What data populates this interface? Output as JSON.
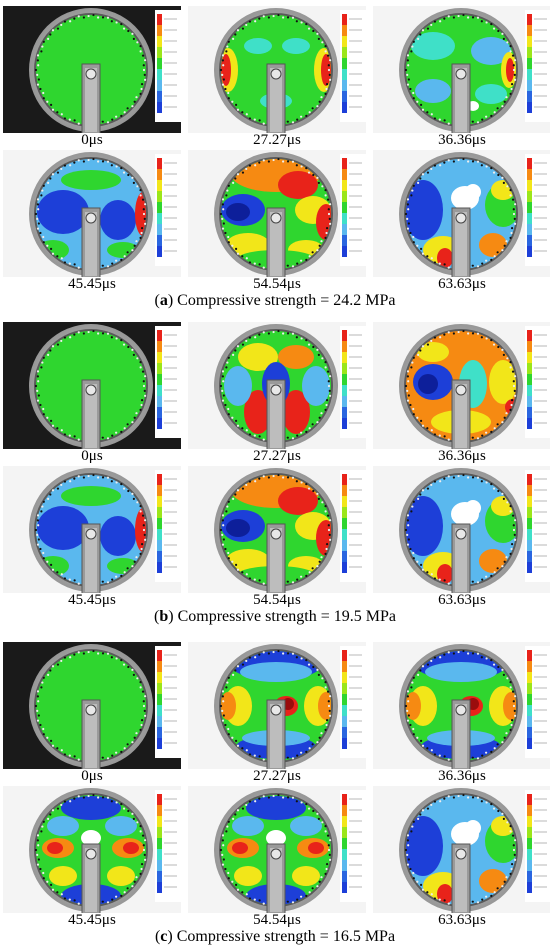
{
  "panels": [
    {
      "letter": "a",
      "caption_text": "Compressive strength = 24.2 MPa",
      "frames": [
        {
          "time": "0μs",
          "style": "uniform"
        },
        {
          "time": "27.27μs",
          "style": "sides-warm"
        },
        {
          "time": "36.36μs",
          "style": "mixed-cool"
        },
        {
          "time": "45.45μs",
          "style": "cool-center"
        },
        {
          "time": "54.54μs",
          "style": "hot-band"
        },
        {
          "time": "63.63μs",
          "style": "fracture"
        }
      ]
    },
    {
      "letter": "b",
      "caption_text": "Compressive strength = 19.5 MPa",
      "frames": [
        {
          "time": "0μs",
          "style": "uniform"
        },
        {
          "time": "27.27μs",
          "style": "lobes"
        },
        {
          "time": "36.36μs",
          "style": "orange-field"
        },
        {
          "time": "45.45μs",
          "style": "cool-center"
        },
        {
          "time": "54.54μs",
          "style": "hot-band"
        },
        {
          "time": "63.63μs",
          "style": "fracture"
        }
      ]
    },
    {
      "letter": "c",
      "caption_text": "Compressive strength = 16.5 MPa",
      "frames": [
        {
          "time": "0μs",
          "style": "uniform"
        },
        {
          "time": "27.27μs",
          "style": "blue-arc"
        },
        {
          "time": "36.36μs",
          "style": "blue-arc"
        },
        {
          "time": "45.45μs",
          "style": "quad"
        },
        {
          "time": "54.54μs",
          "style": "quad"
        },
        {
          "time": "63.63μs",
          "style": "fracture"
        }
      ]
    }
  ],
  "colors": {
    "green": "#2fd62f",
    "blue": "#1d3fd8",
    "lightblue": "#5ab8ee",
    "cyan": "#3fe0c8",
    "yellow": "#f2e619",
    "orange": "#f68a12",
    "red": "#e8231a"
  }
}
